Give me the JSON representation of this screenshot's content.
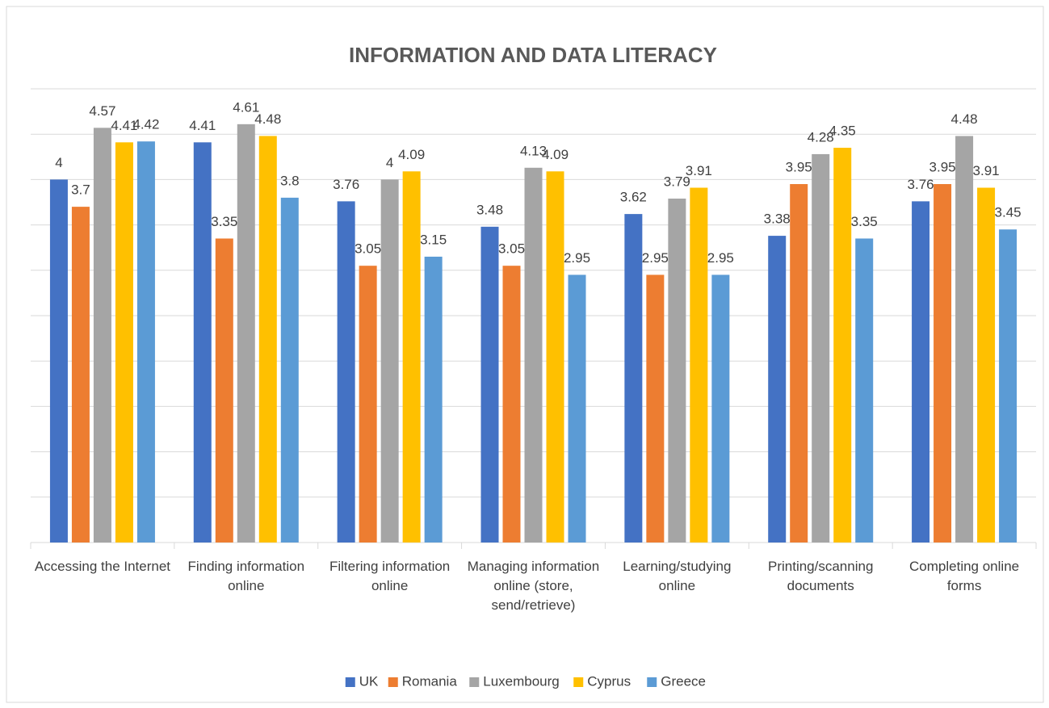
{
  "chart_data": {
    "type": "bar",
    "title": "INFORMATION AND DATA LITERACY",
    "categories": [
      "Accessing the Internet",
      "Finding information online",
      "Filtering information online",
      "Managing information online (store, send/retrieve)",
      "Learning/studying online",
      "Printing/scanning documents",
      "Completing online forms"
    ],
    "series": [
      {
        "name": "UK",
        "color": "#4472c4",
        "values": [
          4,
          4.41,
          3.76,
          3.48,
          3.62,
          3.38,
          3.76
        ]
      },
      {
        "name": "Romania",
        "color": "#ed7d31",
        "values": [
          3.7,
          3.35,
          3.05,
          3.05,
          2.95,
          3.95,
          3.95
        ]
      },
      {
        "name": "Luxembourg",
        "color": "#a5a5a5",
        "values": [
          4.57,
          4.61,
          4,
          4.13,
          3.79,
          4.28,
          4.48
        ]
      },
      {
        "name": "Cyprus",
        "color": "#ffc000",
        "values": [
          4.41,
          4.48,
          4.09,
          4.09,
          3.91,
          4.35,
          3.91
        ]
      },
      {
        "name": "Greece",
        "color": "#5b9bd5",
        "values": [
          4.42,
          3.8,
          3.15,
          2.95,
          2.95,
          3.35,
          3.45
        ]
      }
    ],
    "ylim": [
      0,
      5
    ],
    "yticks": [
      0,
      0.5,
      1,
      1.5,
      2,
      2.5,
      3,
      3.5,
      4,
      4.5,
      5
    ],
    "grid": true,
    "legend": "bottom"
  }
}
